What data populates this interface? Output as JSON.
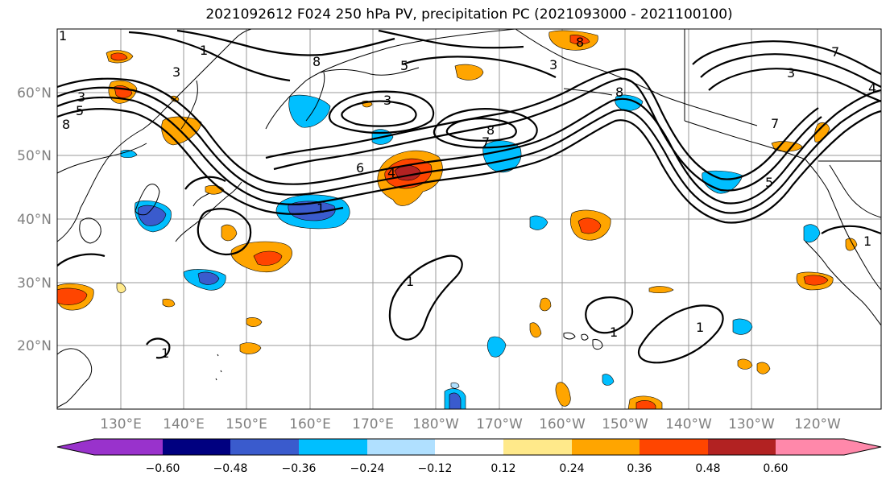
{
  "title": "2021092612 F024 250 hPa PV, precipitation PC (2021093000 - 2021100100)",
  "lat_labels": [
    "60°N",
    "50°N",
    "40°N",
    "30°N",
    "20°N"
  ],
  "lon_labels": [
    "130°E",
    "140°E",
    "150°E",
    "160°E",
    "170°E",
    "180°W",
    "170°W",
    "160°W",
    "150°W",
    "140°W",
    "130°W",
    "120°W"
  ],
  "contour_labels": [
    "8",
    "3",
    "5",
    "3",
    "3",
    "8",
    "8",
    "6",
    "4",
    "1",
    "1",
    "1",
    "1",
    "1",
    "3",
    "7",
    "7",
    "5",
    "8",
    "4",
    "1",
    "1",
    "1",
    "3",
    "5",
    "8",
    "7"
  ],
  "colorbar": {
    "ticks": [
      "−0.60",
      "−0.48",
      "−0.36",
      "−0.24",
      "−0.12",
      "0.12",
      "0.24",
      "0.36",
      "0.48",
      "0.60"
    ],
    "colors": [
      "#9932cc",
      "#000080",
      "#3a5bcd",
      "#00bfff",
      "#b0e0ff",
      "#ffffff",
      "#ffe98a",
      "#ffa500",
      "#ff4500",
      "#b22222",
      "#ff88aa"
    ]
  }
}
